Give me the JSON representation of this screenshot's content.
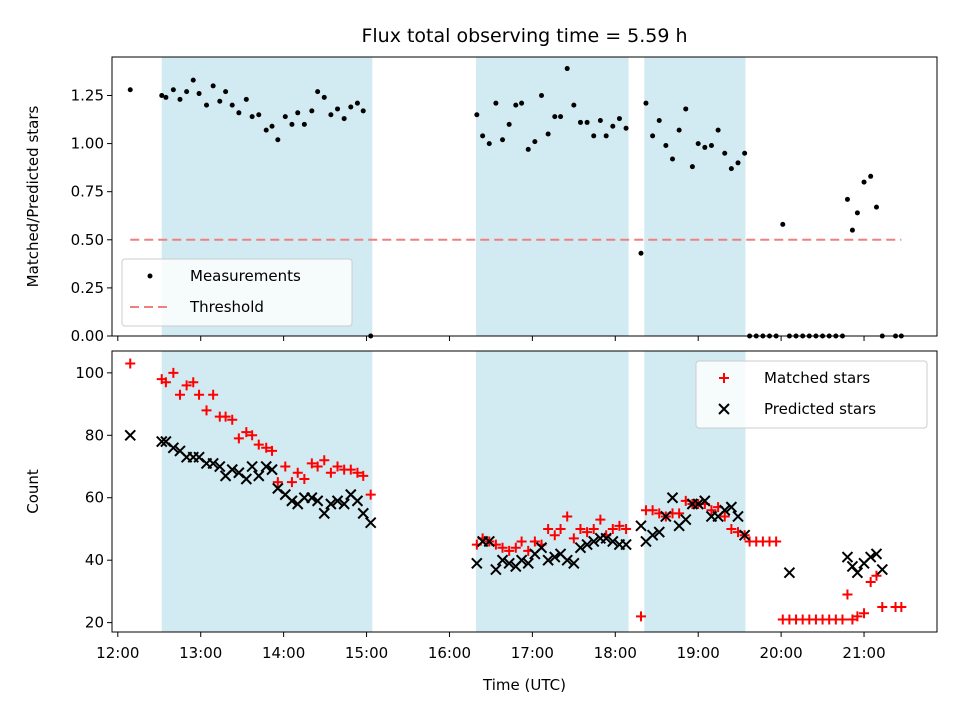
{
  "title": "Flux total observing time = 5.59 h",
  "chart_data": [
    {
      "type": "scatter",
      "ylabel": "Matched/Predicted stars",
      "xlim": [
        11.93,
        21.88
      ],
      "ylim": [
        0.0,
        1.45
      ],
      "yticks": [
        0.0,
        0.25,
        0.5,
        0.75,
        1.0,
        1.25
      ],
      "ytick_labels": [
        "0.00",
        "0.25",
        "0.50",
        "0.75",
        "1.00",
        "1.25"
      ],
      "shaded_intervals": [
        [
          12.53,
          15.07
        ],
        [
          16.32,
          18.16
        ],
        [
          18.35,
          19.57
        ]
      ],
      "shade_color": "#add8e6",
      "threshold": {
        "name": "Threshold",
        "value": 0.5,
        "x_range": [
          12.15,
          21.45
        ],
        "color": "#f08080"
      },
      "legend": {
        "position": "lower-left",
        "entries": [
          "Measurements",
          "Threshold"
        ]
      },
      "series": [
        {
          "name": "Measurements",
          "color": "#000000",
          "x": [
            12.15,
            12.53,
            12.58,
            12.67,
            12.75,
            12.83,
            12.91,
            12.98,
            13.07,
            13.15,
            13.23,
            13.3,
            13.38,
            13.46,
            13.55,
            13.62,
            13.7,
            13.79,
            13.86,
            13.93,
            14.02,
            14.1,
            14.17,
            14.25,
            14.34,
            14.41,
            14.49,
            14.57,
            14.65,
            14.73,
            14.81,
            14.89,
            14.96,
            15.05,
            16.33,
            16.4,
            16.48,
            16.56,
            16.64,
            16.72,
            16.8,
            16.87,
            16.95,
            17.03,
            17.11,
            17.19,
            17.27,
            17.34,
            17.42,
            17.5,
            17.58,
            17.66,
            17.74,
            17.82,
            17.89,
            17.97,
            18.05,
            18.13,
            18.31,
            18.37,
            18.45,
            18.53,
            18.61,
            18.69,
            18.77,
            18.85,
            18.93,
            19.0,
            19.08,
            19.16,
            19.24,
            19.32,
            19.4,
            19.48,
            19.56,
            19.62,
            19.7,
            19.78,
            19.86,
            19.94,
            20.02,
            20.1,
            20.18,
            20.26,
            20.34,
            20.42,
            20.5,
            20.58,
            20.66,
            20.74,
            20.8,
            20.86,
            20.92,
            21.0,
            21.08,
            21.15,
            21.22,
            21.38,
            21.45
          ],
          "y": [
            1.28,
            1.25,
            1.24,
            1.28,
            1.23,
            1.27,
            1.33,
            1.26,
            1.2,
            1.3,
            1.22,
            1.27,
            1.2,
            1.16,
            1.23,
            1.14,
            1.15,
            1.07,
            1.09,
            1.02,
            1.14,
            1.1,
            1.16,
            1.1,
            1.17,
            1.27,
            1.24,
            1.15,
            1.18,
            1.13,
            1.19,
            1.21,
            1.17,
            0.0,
            1.15,
            1.04,
            1.0,
            1.21,
            1.02,
            1.1,
            1.2,
            1.21,
            0.97,
            1.01,
            1.25,
            1.05,
            1.14,
            1.14,
            1.39,
            1.2,
            1.11,
            1.11,
            1.04,
            1.12,
            1.04,
            1.09,
            1.13,
            1.08,
            0.43,
            1.21,
            1.04,
            1.12,
            0.99,
            0.92,
            1.07,
            1.18,
            0.88,
            1.0,
            0.98,
            0.99,
            1.07,
            0.95,
            0.87,
            0.9,
            0.95,
            0.0,
            0.0,
            0.0,
            0.0,
            0.0,
            0.58,
            0.0,
            0.0,
            0.0,
            0.0,
            0.0,
            0.0,
            0.0,
            0.0,
            0.0,
            0.71,
            0.55,
            0.64,
            0.8,
            0.83,
            0.67,
            0.0,
            0.0,
            0.0
          ]
        }
      ]
    },
    {
      "type": "scatter",
      "xlabel": "Time (UTC)",
      "ylabel": "Count",
      "xlim": [
        11.93,
        21.88
      ],
      "ylim": [
        17,
        107
      ],
      "xticks": [
        12,
        13,
        14,
        15,
        16,
        17,
        18,
        19,
        20,
        21
      ],
      "xtick_labels": [
        "12:00",
        "13:00",
        "14:00",
        "15:00",
        "16:00",
        "17:00",
        "18:00",
        "19:00",
        "20:00",
        "21:00"
      ],
      "yticks": [
        20,
        40,
        60,
        80,
        100
      ],
      "ytick_labels": [
        "20",
        "40",
        "60",
        "80",
        "100"
      ],
      "shaded_intervals": [
        [
          12.53,
          15.07
        ],
        [
          16.32,
          18.16
        ],
        [
          18.35,
          19.57
        ]
      ],
      "shade_color": "#add8e6",
      "legend": {
        "position": "top-right",
        "entries": [
          "Matched stars",
          "Predicted stars"
        ]
      },
      "series": [
        {
          "name": "Matched stars",
          "marker": "plus",
          "color": "#ff0000",
          "x": [
            12.15,
            12.53,
            12.58,
            12.67,
            12.75,
            12.83,
            12.91,
            12.98,
            13.07,
            13.15,
            13.23,
            13.3,
            13.38,
            13.46,
            13.55,
            13.62,
            13.7,
            13.79,
            13.86,
            13.93,
            14.02,
            14.1,
            14.17,
            14.25,
            14.34,
            14.41,
            14.49,
            14.57,
            14.65,
            14.73,
            14.81,
            14.89,
            14.96,
            15.05,
            16.33,
            16.4,
            16.48,
            16.56,
            16.64,
            16.72,
            16.8,
            16.87,
            16.95,
            17.03,
            17.11,
            17.19,
            17.27,
            17.34,
            17.42,
            17.5,
            17.58,
            17.66,
            17.74,
            17.82,
            17.89,
            17.97,
            18.05,
            18.13,
            18.31,
            18.37,
            18.45,
            18.53,
            18.61,
            18.69,
            18.77,
            18.85,
            18.93,
            19.0,
            19.08,
            19.16,
            19.24,
            19.32,
            19.4,
            19.48,
            19.56,
            19.62,
            19.7,
            19.78,
            19.86,
            19.94,
            20.02,
            20.1,
            20.18,
            20.26,
            20.34,
            20.42,
            20.5,
            20.58,
            20.66,
            20.74,
            20.8,
            20.86,
            20.92,
            21.0,
            21.08,
            21.15,
            21.22,
            21.38,
            21.45
          ],
          "y": [
            103,
            98,
            97,
            100,
            93,
            96,
            97,
            93,
            88,
            93,
            86,
            86,
            85,
            79,
            81,
            80,
            77,
            76,
            75,
            65,
            70,
            65,
            68,
            66,
            71,
            70,
            72,
            68,
            70,
            69,
            69,
            68,
            67,
            61,
            45,
            47,
            46,
            45,
            44,
            43,
            44,
            46,
            43,
            46,
            45,
            50,
            48,
            50,
            54,
            47,
            50,
            49,
            50,
            53,
            48,
            50,
            51,
            50,
            22,
            56,
            56,
            55,
            54,
            55,
            55,
            59,
            58,
            58,
            58,
            56,
            57,
            54,
            50,
            49,
            48,
            46,
            46,
            46,
            46,
            46,
            21,
            21,
            21,
            21,
            21,
            21,
            21,
            21,
            21,
            21,
            29,
            21,
            22,
            23,
            33,
            35,
            25,
            25,
            25
          ]
        },
        {
          "name": "Predicted stars",
          "marker": "x",
          "color": "#000000",
          "x": [
            12.15,
            12.53,
            12.58,
            12.67,
            12.75,
            12.83,
            12.91,
            12.98,
            13.07,
            13.15,
            13.23,
            13.3,
            13.38,
            13.46,
            13.55,
            13.62,
            13.7,
            13.79,
            13.86,
            13.93,
            14.02,
            14.1,
            14.17,
            14.25,
            14.34,
            14.41,
            14.49,
            14.57,
            14.65,
            14.73,
            14.81,
            14.89,
            14.96,
            15.05,
            16.33,
            16.4,
            16.48,
            16.56,
            16.64,
            16.72,
            16.8,
            16.87,
            16.95,
            17.03,
            17.11,
            17.19,
            17.27,
            17.34,
            17.42,
            17.5,
            17.58,
            17.66,
            17.74,
            17.82,
            17.89,
            17.97,
            18.05,
            18.13,
            18.31,
            18.37,
            18.45,
            18.53,
            18.61,
            18.69,
            18.77,
            18.85,
            18.93,
            19.0,
            19.08,
            19.16,
            19.24,
            19.32,
            19.4,
            19.48,
            19.56,
            20.1,
            20.8,
            20.86,
            20.92,
            21.0,
            21.08,
            21.15,
            21.22
          ],
          "y": [
            80,
            78,
            78,
            76,
            75,
            73,
            73,
            73,
            71,
            71,
            70,
            67,
            69,
            68,
            66,
            70,
            67,
            70,
            69,
            63,
            61,
            59,
            58,
            60,
            60,
            59,
            55,
            58,
            59,
            58,
            61,
            59,
            55,
            52,
            39,
            46,
            46,
            37,
            40,
            39,
            38,
            40,
            39,
            42,
            44,
            40,
            41,
            42,
            40,
            39,
            44,
            45,
            46,
            47,
            47,
            46,
            45,
            45,
            51,
            46,
            48,
            49,
            54,
            60,
            51,
            53,
            58,
            58,
            59,
            54,
            54,
            56,
            57,
            54,
            48,
            36,
            41,
            38,
            36,
            39,
            41,
            42,
            37
          ]
        }
      ]
    }
  ]
}
